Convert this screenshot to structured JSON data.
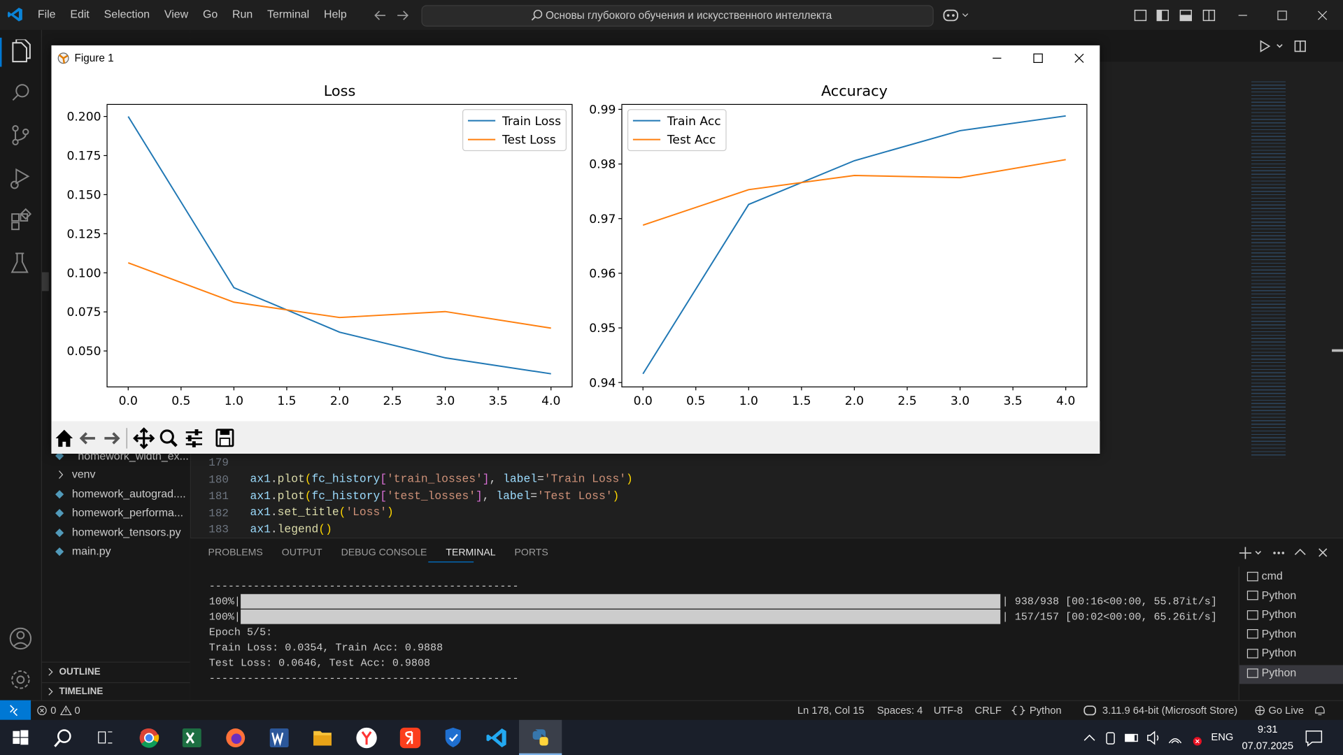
{
  "menu": [
    "File",
    "Edit",
    "Selection",
    "View",
    "Go",
    "Run",
    "Terminal",
    "Help"
  ],
  "search": "Основы глубокого обучения и искусственного интеллекта",
  "figure": {
    "title": "Figure 1"
  },
  "chart_data": [
    {
      "type": "line",
      "title": "Loss",
      "x": [
        0,
        1,
        2,
        3,
        4
      ],
      "series": [
        {
          "name": "Train Loss",
          "color": "#1f77b4",
          "values": [
            0.2,
            0.0905,
            0.062,
            0.0456,
            0.0354
          ]
        },
        {
          "name": "Test Loss",
          "color": "#ff7f0e",
          "values": [
            0.1064,
            0.0812,
            0.0714,
            0.0752,
            0.0646
          ]
        }
      ],
      "xlim": [
        -0.2,
        4.2
      ],
      "xticks": [
        {
          "value": 0,
          "label": "0.0"
        },
        0.5,
        {
          "value": 1,
          "label": "1.0"
        },
        1.5,
        {
          "value": 2,
          "label": "2.0"
        },
        2.5,
        {
          "value": 3,
          "label": "3.0"
        },
        3.5,
        {
          "value": 4,
          "label": "4.0"
        }
      ],
      "ylim": [
        0.027,
        0.2077
      ],
      "yticks": [
        {
          "value": 0.05,
          "label": "0.050"
        },
        {
          "value": 0.075,
          "label": "0.075"
        },
        {
          "value": 0.1,
          "label": "0.100"
        },
        {
          "value": 0.125,
          "label": "0.125"
        },
        {
          "value": 0.15,
          "label": "0.150"
        },
        {
          "value": 0.175,
          "label": "0.175"
        },
        {
          "value": 0.2,
          "label": "0.200"
        }
      ],
      "legend": "upper right"
    },
    {
      "type": "line",
      "title": "Accuracy",
      "x": [
        0,
        1,
        2,
        3,
        4
      ],
      "series": [
        {
          "name": "Train Acc",
          "color": "#1f77b4",
          "values": [
            0.9416,
            0.9726,
            0.9806,
            0.9861,
            0.9888
          ]
        },
        {
          "name": "Test Acc",
          "color": "#ff7f0e",
          "values": [
            0.9688,
            0.9753,
            0.9779,
            0.9775,
            0.9808
          ]
        }
      ],
      "xlim": [
        -0.2,
        4.2
      ],
      "xticks": [
        {
          "value": 0,
          "label": "0.0"
        },
        0.5,
        {
          "value": 1,
          "label": "1.0"
        },
        1.5,
        {
          "value": 2,
          "label": "2.0"
        },
        2.5,
        {
          "value": 3,
          "label": "3.0"
        },
        3.5,
        {
          "value": 4,
          "label": "4.0"
        }
      ],
      "ylim": [
        0.9392,
        0.9909
      ],
      "yticks": [
        0.94,
        0.95,
        0.96,
        0.97,
        0.98,
        0.99
      ],
      "legend": "upper left"
    }
  ],
  "explorer": {
    "items": [
      "homework_width_ex...",
      "venv",
      "homework_autograd....",
      "homework_performa...",
      "homework_tensors.py",
      "main.py"
    ],
    "sections": [
      "OUTLINE",
      "TIMELINE"
    ]
  },
  "editor": {
    "line_numbers": [
      179,
      180,
      181,
      182,
      183
    ],
    "code": [
      "ax1.plot(fc_history['train_losses'], label='Train Loss')",
      "ax1.plot(fc_history['test_losses'], label='Test Loss')",
      "ax1.set_title('Loss')",
      "ax1.legend()"
    ]
  },
  "panel": {
    "tabs": [
      "PROBLEMS",
      "OUTPUT",
      "DEBUG CONSOLE",
      "TERMINAL",
      "PORTS"
    ],
    "terminal": {
      "separator": "-------------------------------------------------",
      "progress": [
        {
          "percent": "100%|",
          "stats": "| 938/938 [00:16<00:00, 55.87it/s]"
        },
        {
          "percent": "100%|",
          "stats": "| 157/157 [00:02<00:00, 65.26it/s]"
        }
      ],
      "lines": [
        "Epoch 5/5:",
        "Train Loss: 0.0354, Train Acc: 0.9888",
        "Test Loss: 0.0646, Test Acc: 0.9808"
      ]
    },
    "terminals": [
      "cmd",
      "Python",
      "Python",
      "Python",
      "Python",
      "Python"
    ]
  },
  "status_bar": {
    "errors": 0,
    "warnings": 0,
    "position": "Ln 178, Col 15",
    "spaces": "Spaces: 4",
    "encoding": "UTF-8",
    "eol": "CRLF",
    "language": "Python",
    "interpreter": "3.11.9 64-bit (Microsoft Store)",
    "live": "Go Live"
  },
  "taskbar": {
    "language": "ENG",
    "time": "9:31",
    "date": "07.07.2025"
  }
}
